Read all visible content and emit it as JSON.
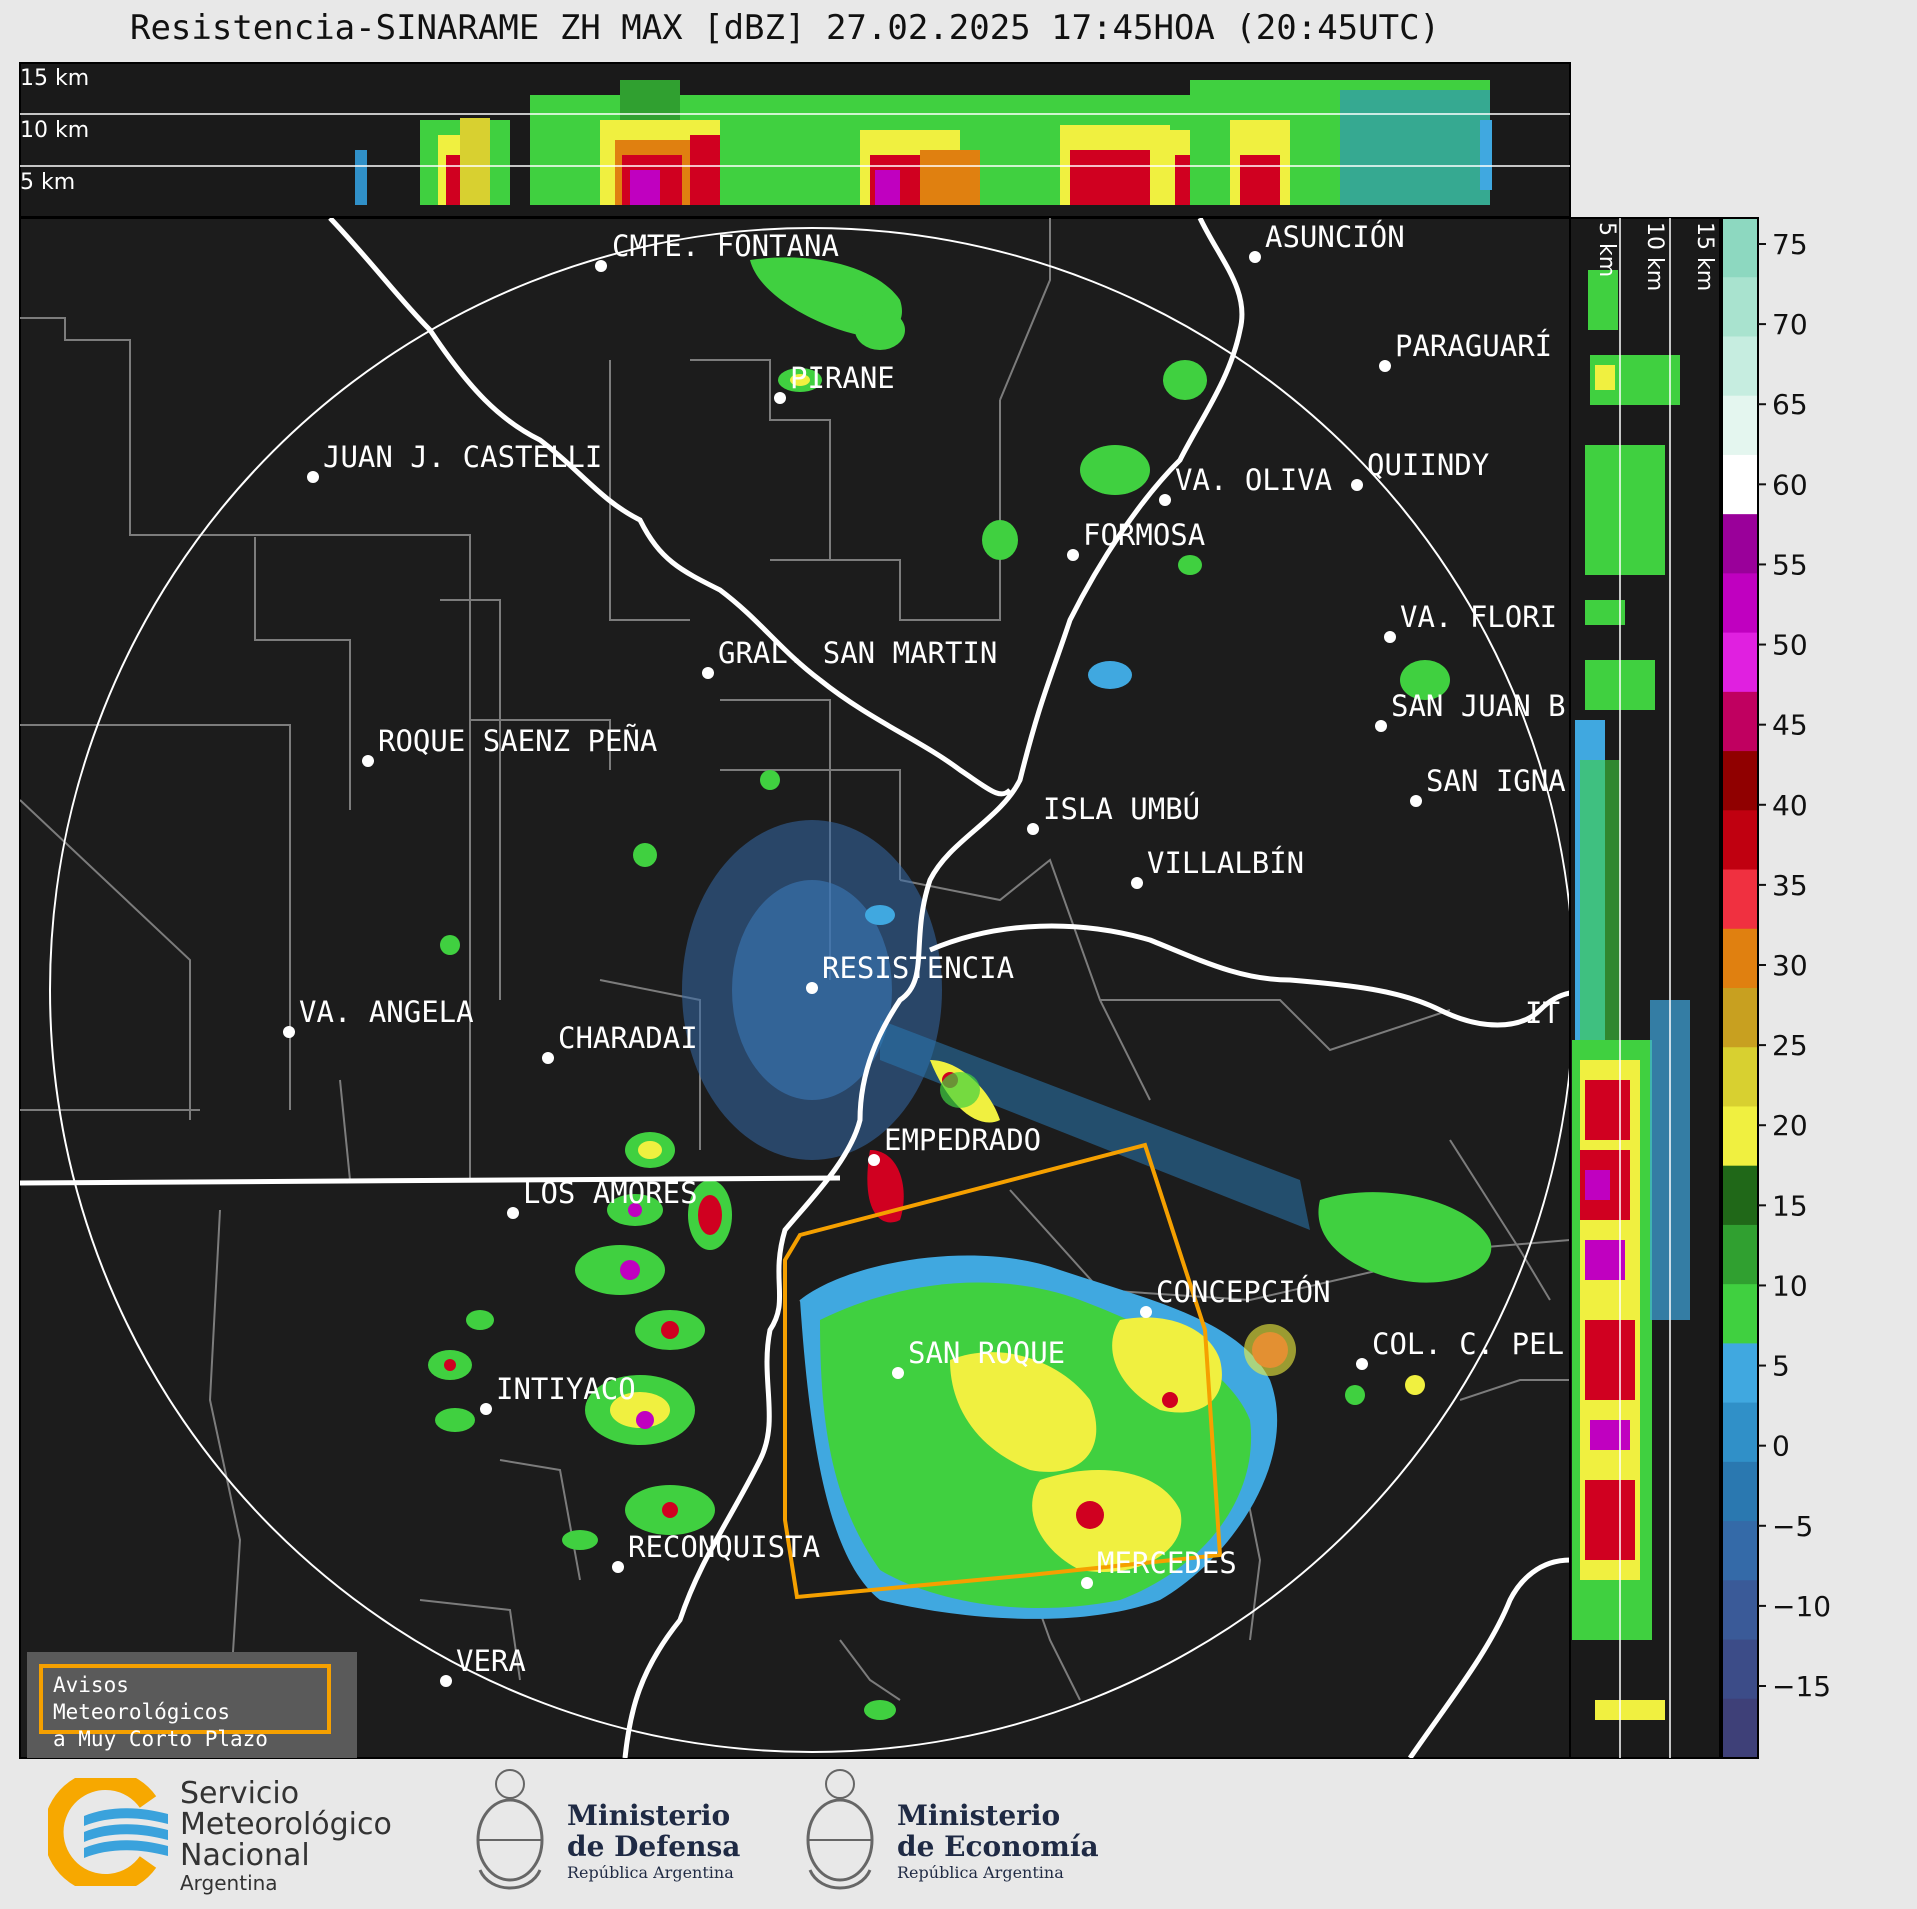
{
  "title": "Resistencia-SINARAME ZH MAX [dBZ] 27.02.2025 17:45HOA (20:45UTC)",
  "top_panel_labels": [
    "15 km",
    "10 km",
    "5 km"
  ],
  "side_panel_labels": [
    "5 km",
    "10 km",
    "15 km"
  ],
  "colorbar": {
    "ticks": [
      "75",
      "70",
      "65",
      "60",
      "55",
      "50",
      "45",
      "40",
      "35",
      "30",
      "25",
      "20",
      "15",
      "10",
      "5",
      "0",
      "−5",
      "−10",
      "−15"
    ],
    "colors": [
      "#8dd8c0",
      "#a9e3cf",
      "#c6ede0",
      "#e4f6ef",
      "#ffffff",
      "#9a009a",
      "#c000c0",
      "#e020e0",
      "#c00060",
      "#900000",
      "#c00010",
      "#f03040",
      "#e08010",
      "#c8a020",
      "#d8d030",
      "#f0f040",
      "#206818",
      "#30a030",
      "#40d040",
      "#40a8e0",
      "#3090c8",
      "#2a78b0",
      "#346aa8",
      "#3a5a98",
      "#3c4c88",
      "#3e4078"
    ]
  },
  "cities": [
    {
      "name": "CMTE. FONTANA"
    },
    {
      "name": "ASUNCIÓN"
    },
    {
      "name": "PARAGUARÍ"
    },
    {
      "name": "PIRANE"
    },
    {
      "name": "JUAN J. CASTELLI"
    },
    {
      "name": "VA. OLIVA"
    },
    {
      "name": "QUIINDY"
    },
    {
      "name": "FORMOSA"
    },
    {
      "name": "VA. FLORI"
    },
    {
      "name": "GRAL. SAN MARTIN"
    },
    {
      "name": "SAN JUAN B"
    },
    {
      "name": "ROQUE SAENZ PEÑA"
    },
    {
      "name": "SAN IGNA"
    },
    {
      "name": "ISLA UMBÚ"
    },
    {
      "name": "VILLALBÍN"
    },
    {
      "name": "RESISTENCIA"
    },
    {
      "name": "VA. ANGELA"
    },
    {
      "name": "CHARADAI"
    },
    {
      "name": "IT"
    },
    {
      "name": "EMPEDRADO"
    },
    {
      "name": "LOS AMORES"
    },
    {
      "name": "CONCEPCIÓN"
    },
    {
      "name": "COL. C. PEL"
    },
    {
      "name": "SAN ROQUE"
    },
    {
      "name": "INTIYACO"
    },
    {
      "name": "RECONQUISTA"
    },
    {
      "name": "MERCEDES"
    },
    {
      "name": "VERA"
    }
  ],
  "avisos": {
    "line1": "Avisos Meteorológicos",
    "line2": "a Muy Corto Plazo"
  },
  "logos": {
    "smn": {
      "line1": "Servicio",
      "line2": "Meteorológico",
      "line3": "Nacional",
      "line4": "Argentina"
    },
    "defensa": {
      "line1": "Ministerio",
      "line2": "de Defensa",
      "line3": "República Argentina"
    },
    "economia": {
      "line1": "Ministerio",
      "line2": "de Economía",
      "line3": "República Argentina"
    }
  }
}
